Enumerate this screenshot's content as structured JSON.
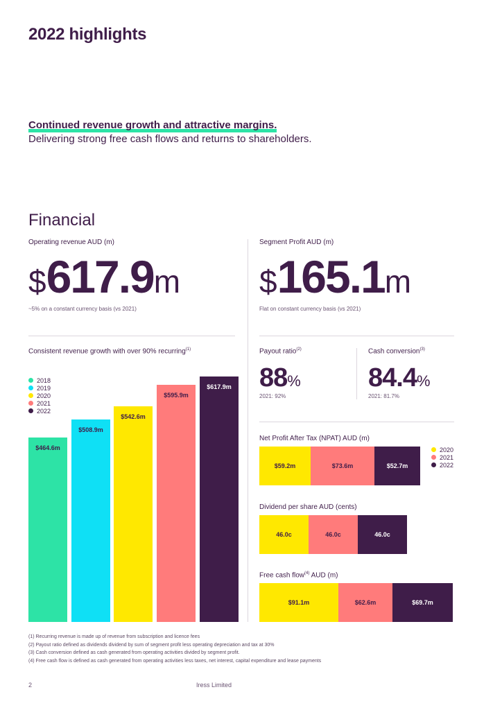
{
  "page": {
    "title": "2022 highlights",
    "lead_bold": "Continued revenue growth and attractive margins.",
    "lead_sub": "Delivering strong free cash flows and returns to shareholders.",
    "section": "Financial",
    "page_number": "2",
    "company": "Iress Limited"
  },
  "colors": {
    "2018": "#2de3a6",
    "2019": "#0fe0f5",
    "2020": "#ffe800",
    "2021": "#ff7b7b",
    "2022": "#3f1d49",
    "text": "#3f1d49"
  },
  "revenue": {
    "label": "Operating revenue AUD (m)",
    "currency": "$",
    "value": "617.9",
    "unit": "m",
    "note": "~5% on a constant currency basis (vs 2021)"
  },
  "segment": {
    "label": "Segment Profit AUD (m)",
    "currency": "$",
    "value": "165.1",
    "unit": "m",
    "note": "Flat on constant currency basis (vs 2021)"
  },
  "payout": {
    "label": "Payout ratio",
    "sup": "(2)",
    "value": "88",
    "unit": "%",
    "prior": "2021: 92%"
  },
  "cash_conversion": {
    "label": "Cash conversion",
    "sup": "(3)",
    "value": "84.4",
    "unit": "%",
    "prior": "2021: 81.7%"
  },
  "chart_data": [
    {
      "type": "bar",
      "title": "Consistent revenue growth with over 90% recurring",
      "title_sup": "(1)",
      "categories": [
        "2018",
        "2019",
        "2020",
        "2021",
        "2022"
      ],
      "values": [
        464.6,
        508.9,
        542.6,
        595.9,
        617.9
      ],
      "labels": [
        "$464.6m",
        "$508.9m",
        "$542.6m",
        "$595.9m",
        "$617.9m"
      ],
      "legend": [
        "2018",
        "2019",
        "2020",
        "2021",
        "2022"
      ],
      "legend_position": "top-left",
      "grid": false
    },
    {
      "type": "bar",
      "orientation": "horizontal-stacked",
      "title": "Net Profit After Tax (NPAT) AUD (m)",
      "series": [
        {
          "name": "2020",
          "values": [
            59.2
          ],
          "label": "$59.2m"
        },
        {
          "name": "2021",
          "values": [
            73.6
          ],
          "label": "$73.6m"
        },
        {
          "name": "2022",
          "values": [
            52.7
          ],
          "label": "$52.7m"
        }
      ],
      "legend": [
        "2020",
        "2021",
        "2022"
      ],
      "legend_position": "right"
    },
    {
      "type": "bar",
      "orientation": "horizontal-stacked",
      "title": "Dividend per share AUD (cents)",
      "series": [
        {
          "name": "2020",
          "values": [
            46.0
          ],
          "label": "46.0c"
        },
        {
          "name": "2021",
          "values": [
            46.0
          ],
          "label": "46.0c"
        },
        {
          "name": "2022",
          "values": [
            46.0
          ],
          "label": "46.0c"
        }
      ]
    },
    {
      "type": "bar",
      "orientation": "horizontal-stacked",
      "title": "Free cash flow",
      "title_sup": "(4)",
      "title_suffix": "AUD (m)",
      "series": [
        {
          "name": "2020",
          "values": [
            91.1
          ],
          "label": "$91.1m"
        },
        {
          "name": "2021",
          "values": [
            62.6
          ],
          "label": "$62.6m"
        },
        {
          "name": "2022",
          "values": [
            69.7
          ],
          "label": "$69.7m"
        }
      ]
    }
  ],
  "footnotes": [
    "(1)   Recurring revenue is made up of revenue from subscription and licence fees",
    "(2)   Payout ratio defined as dividends dividend by sum of segment profit less operating depreciation and tax at 30%",
    "(3)   Cash conversion defined as cash generated from operating activities divided by segment profit.",
    "(4)   Free cash flow is defined as cash generated from operating activities less taxes, net interest, capital expenditure and lease payments"
  ]
}
